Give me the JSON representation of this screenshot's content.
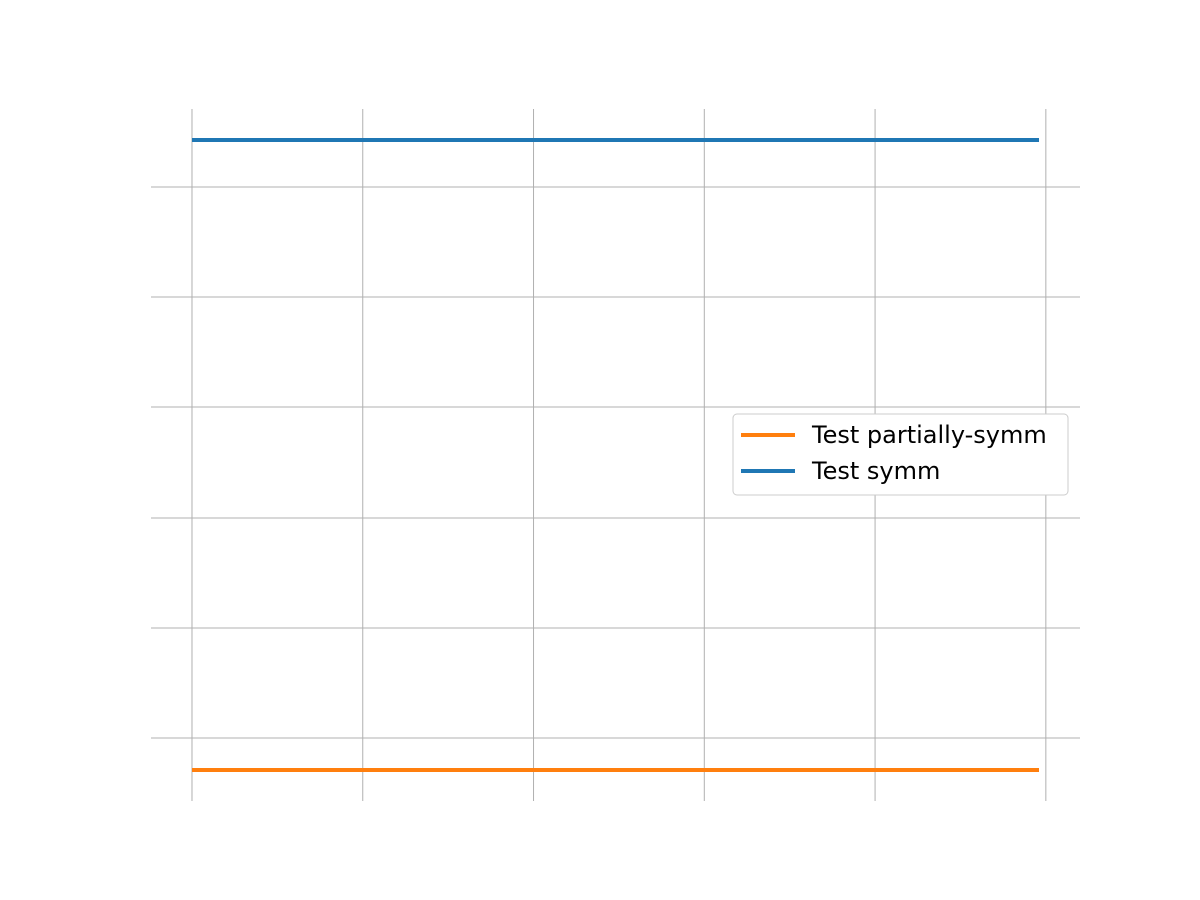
{
  "chart_data": {
    "type": "line",
    "title": "",
    "xlabel": "",
    "ylabel": "",
    "x": [
      0,
      1,
      2,
      3,
      4,
      5
    ],
    "xlim": [
      -0.24,
      5.2
    ],
    "ylim": [
      0.05,
      1.0
    ],
    "x_ticks": [
      0,
      1,
      2,
      3,
      4,
      5
    ],
    "y_ticks": [
      0.2,
      0.4,
      0.6,
      0.8,
      1.0,
      1.2
    ],
    "grid": true,
    "legend_position": "center-right",
    "series": [
      {
        "name": "Test partially-symm",
        "color": "#ff7f0e",
        "x": [
          0,
          4.96
        ],
        "values": [
          0.1,
          0.1
        ]
      },
      {
        "name": "Test symm",
        "color": "#1f77b4",
        "x": [
          0,
          4.96
        ],
        "values": [
          1.04,
          1.04
        ]
      }
    ]
  }
}
